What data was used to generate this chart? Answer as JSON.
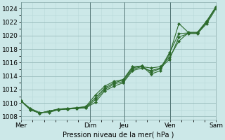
{
  "xlabel": "Pression niveau de la mer( hPa )",
  "background_color": "#cce8e8",
  "grid_major_color": "#99bbbb",
  "grid_minor_color": "#b8d8d8",
  "line_color": "#2d6b2d",
  "ylim": [
    1007.5,
    1025.0
  ],
  "yticks": [
    1008,
    1010,
    1012,
    1014,
    1016,
    1018,
    1020,
    1022,
    1024
  ],
  "xtick_labels": [
    "Mer",
    "",
    "Dim",
    "Jeu",
    "",
    "Ven",
    "",
    "Sam"
  ],
  "xtick_positions": [
    0,
    3,
    6,
    9,
    11,
    13,
    15,
    17
  ],
  "vlines": [
    0,
    6,
    9,
    13,
    17
  ],
  "vline_labels": [
    "Mer",
    "Dim",
    "Jeu",
    "Ven",
    "Sam"
  ],
  "series": [
    [
      1010.3,
      1009.2,
      1008.6,
      1008.6,
      1009.0,
      1009.1,
      1009.2,
      1009.3,
      1010.1,
      1011.8,
      1012.5,
      1013.0,
      1014.8,
      1015.2,
      1014.8,
      1015.2,
      1016.5,
      1019.8,
      1020.3,
      1020.3,
      1021.8,
      1024.0
    ],
    [
      1010.3,
      1009.1,
      1008.5,
      1008.8,
      1009.0,
      1009.1,
      1009.2,
      1009.3,
      1010.5,
      1012.0,
      1012.8,
      1013.2,
      1015.0,
      1015.4,
      1015.2,
      1015.4,
      1016.8,
      1019.2,
      1020.4,
      1020.4,
      1022.0,
      1024.2
    ],
    [
      1010.3,
      1009.0,
      1008.5,
      1008.8,
      1009.1,
      1009.2,
      1009.3,
      1009.4,
      1010.8,
      1012.2,
      1013.0,
      1013.4,
      1015.2,
      1015.5,
      1014.6,
      1015.1,
      1017.5,
      1020.3,
      1020.4,
      1020.4,
      1022.1,
      1024.3
    ],
    [
      1010.3,
      1009.0,
      1008.5,
      1008.8,
      1009.1,
      1009.2,
      1009.3,
      1009.5,
      1011.2,
      1012.5,
      1013.2,
      1013.5,
      1015.4,
      1015.5,
      1014.3,
      1014.8,
      1017.3,
      1021.8,
      1020.5,
      1020.5,
      1022.2,
      1024.3
    ]
  ],
  "n_points": 22,
  "x_total": 17.0,
  "marker": "D",
  "marker_size": 2.0,
  "line_width": 0.8,
  "fontsize_label": 7,
  "fontsize_tick": 6.5
}
